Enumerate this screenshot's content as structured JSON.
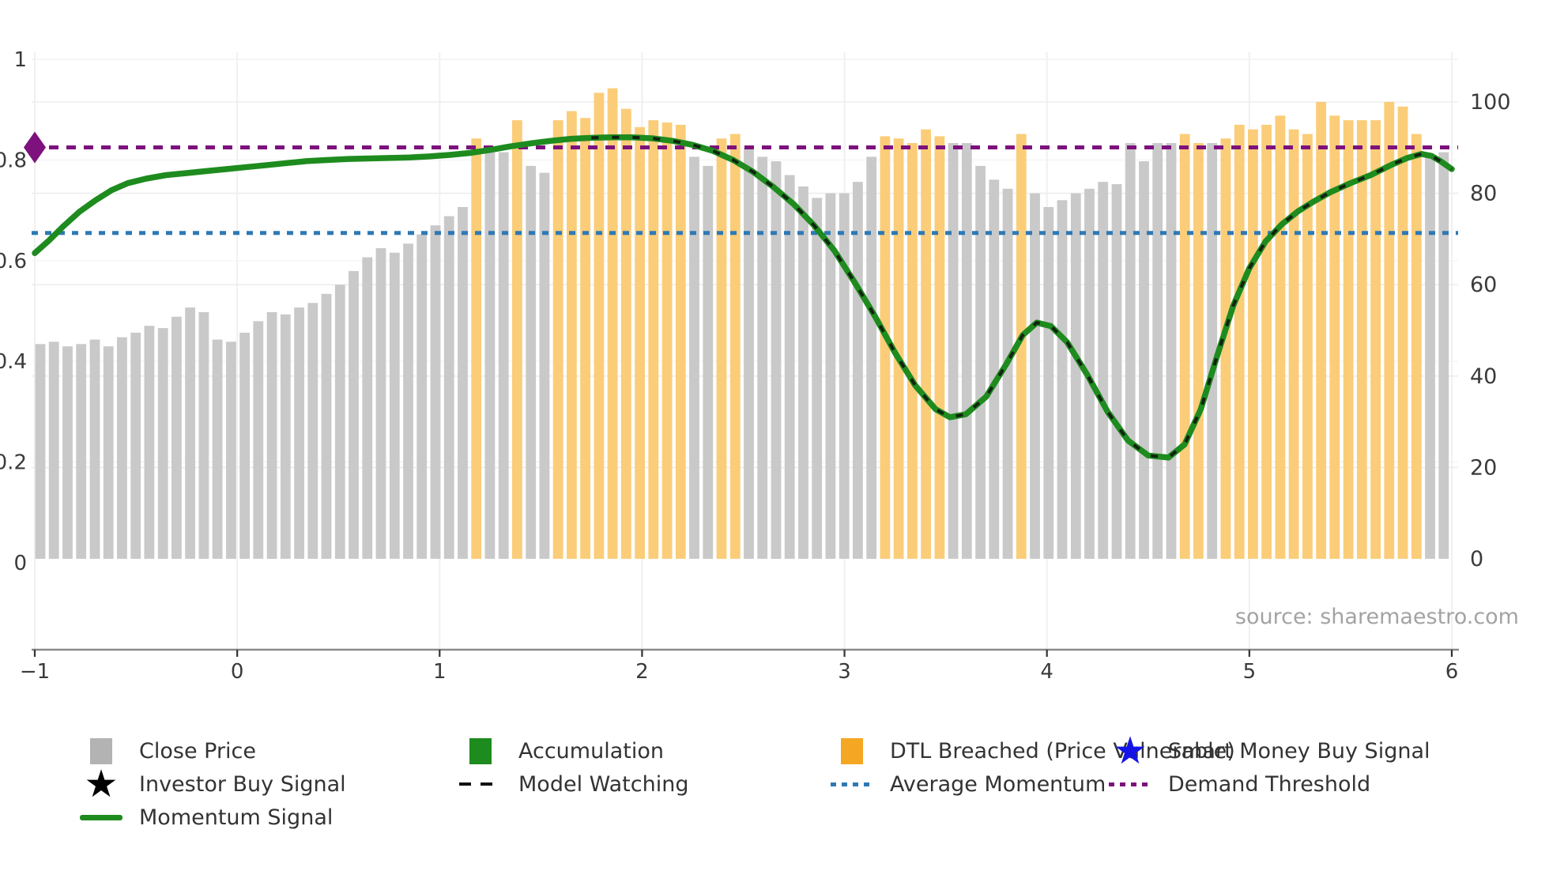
{
  "source_text": "source: sharemaestro.com",
  "colors": {
    "close_bar": "#c9c9c9",
    "close_legend": "#b3b3b3",
    "dtl_bar": "#fbcd79",
    "dtl_legend": "#f5a623",
    "momentum": "#1e8b1e",
    "model_watching": "#111111",
    "average_momentum": "#2e79b5",
    "demand_threshold": "#7d117d",
    "smart_money_star": "#1414e6",
    "investor_star": "#000000",
    "tick_text": "#3a3a3a",
    "axis_line": "#8a8a8a",
    "grid": "#ededed"
  },
  "legend": {
    "items": [
      {
        "label": "Close Price",
        "marker": "gray-swatch"
      },
      {
        "label": "Accumulation",
        "marker": "green-swatch"
      },
      {
        "label": "DTL Breached (Price Vulnerable)",
        "marker": "orange-swatch"
      },
      {
        "label": "Smart Money Buy Signal",
        "marker": "blue-star"
      },
      {
        "label": "Investor Buy Signal",
        "marker": "black-star"
      },
      {
        "label": "Model Watching",
        "marker": "black-dashed-line"
      },
      {
        "label": "Average Momentum",
        "marker": "blue-dotted-line"
      },
      {
        "label": "Demand Threshold",
        "marker": "purple-dotted-line"
      },
      {
        "label": "Momentum Signal",
        "marker": "green-line"
      }
    ]
  },
  "chart_data": {
    "type": "combo-bar-line",
    "title": "",
    "xlabel": "",
    "ylabel": "",
    "legend_position": "bottom",
    "grid": true,
    "x_axis": {
      "ticks": [
        -1,
        0,
        1,
        2,
        3,
        4,
        5,
        6
      ],
      "labels": [
        "−1",
        "0",
        "1",
        "2",
        "3",
        "4",
        "5",
        "6"
      ],
      "range": [
        -1.05,
        6.05
      ]
    },
    "left_axis": {
      "ticks": [
        0,
        0.2,
        0.4,
        0.6,
        0.8,
        1
      ],
      "labels": [
        "0",
        "0.2",
        "0.4",
        "0.6",
        "0.8",
        "1"
      ],
      "range": [
        -0.17,
        1.01
      ]
    },
    "right_axis": {
      "ticks": [
        0,
        20,
        40,
        60,
        80,
        100
      ],
      "labels": [
        "0",
        "20",
        "40",
        "60",
        "80",
        "100"
      ],
      "range": [
        -20,
        111
      ]
    },
    "bars": {
      "name": "Close Price",
      "axis": "right",
      "x_start": -0.99,
      "x_end": 5.97,
      "values": [
        47,
        47.5,
        46.5,
        47,
        48,
        46.5,
        48.5,
        49.5,
        51,
        50.5,
        53,
        55,
        54,
        48,
        47.5,
        49.5,
        52,
        54,
        53.5,
        55,
        56,
        58,
        60,
        63,
        66,
        68,
        67,
        69,
        71,
        73,
        75,
        77,
        92,
        89,
        89,
        96,
        86,
        84.5,
        96,
        98,
        96.5,
        102,
        103,
        98.5,
        94.5,
        96,
        95.5,
        95,
        88,
        86,
        92,
        93,
        90,
        88,
        87,
        84,
        81.5,
        79,
        80,
        80,
        82.5,
        88,
        92.5,
        92,
        91,
        94,
        92.5,
        91,
        91,
        86,
        83,
        81,
        93,
        80,
        77,
        78.5,
        80,
        81,
        82.5,
        82,
        91,
        87,
        91,
        91,
        93,
        91,
        91,
        92,
        95,
        94,
        95,
        97,
        94,
        93,
        100,
        97,
        96,
        96,
        96,
        100,
        99,
        93,
        88,
        89
      ],
      "breached": [
        0,
        0,
        0,
        0,
        0,
        0,
        0,
        0,
        0,
        0,
        0,
        0,
        0,
        0,
        0,
        0,
        0,
        0,
        0,
        0,
        0,
        0,
        0,
        0,
        0,
        0,
        0,
        0,
        0,
        0,
        0,
        0,
        1,
        0,
        0,
        1,
        0,
        0,
        1,
        1,
        1,
        1,
        1,
        1,
        1,
        1,
        1,
        1,
        0,
        0,
        1,
        1,
        0,
        0,
        0,
        0,
        0,
        0,
        0,
        0,
        0,
        0,
        1,
        1,
        1,
        1,
        1,
        0,
        0,
        0,
        0,
        0,
        1,
        0,
        0,
        0,
        0,
        0,
        0,
        0,
        0,
        0,
        0,
        0,
        1,
        1,
        0,
        1,
        1,
        1,
        1,
        1,
        1,
        1,
        1,
        1,
        1,
        1,
        1,
        1,
        1,
        1,
        0,
        0
      ]
    },
    "momentum_signal": {
      "name": "Momentum Signal",
      "axis": "left",
      "points": [
        [
          -1.0,
          0.615
        ],
        [
          -0.93,
          0.64
        ],
        [
          -0.86,
          0.668
        ],
        [
          -0.78,
          0.697
        ],
        [
          -0.7,
          0.72
        ],
        [
          -0.62,
          0.74
        ],
        [
          -0.54,
          0.754
        ],
        [
          -0.45,
          0.763
        ],
        [
          -0.35,
          0.77
        ],
        [
          -0.25,
          0.774
        ],
        [
          -0.15,
          0.778
        ],
        [
          -0.05,
          0.782
        ],
        [
          0.05,
          0.786
        ],
        [
          0.15,
          0.79
        ],
        [
          0.25,
          0.794
        ],
        [
          0.35,
          0.798
        ],
        [
          0.45,
          0.8
        ],
        [
          0.55,
          0.802
        ],
        [
          0.65,
          0.803
        ],
        [
          0.75,
          0.804
        ],
        [
          0.85,
          0.805
        ],
        [
          0.95,
          0.807
        ],
        [
          1.05,
          0.81
        ],
        [
          1.15,
          0.814
        ],
        [
          1.25,
          0.82
        ],
        [
          1.35,
          0.827
        ],
        [
          1.45,
          0.833
        ],
        [
          1.55,
          0.838
        ],
        [
          1.65,
          0.842
        ],
        [
          1.75,
          0.844
        ],
        [
          1.85,
          0.845
        ],
        [
          1.95,
          0.845
        ],
        [
          2.05,
          0.843
        ],
        [
          2.15,
          0.838
        ],
        [
          2.25,
          0.83
        ],
        [
          2.35,
          0.818
        ],
        [
          2.45,
          0.8
        ],
        [
          2.55,
          0.776
        ],
        [
          2.65,
          0.746
        ],
        [
          2.75,
          0.712
        ],
        [
          2.85,
          0.67
        ],
        [
          2.95,
          0.62
        ],
        [
          3.05,
          0.557
        ],
        [
          3.15,
          0.49
        ],
        [
          3.25,
          0.417
        ],
        [
          3.35,
          0.352
        ],
        [
          3.45,
          0.305
        ],
        [
          3.52,
          0.289
        ],
        [
          3.6,
          0.295
        ],
        [
          3.7,
          0.33
        ],
        [
          3.8,
          0.395
        ],
        [
          3.88,
          0.452
        ],
        [
          3.95,
          0.477
        ],
        [
          4.02,
          0.47
        ],
        [
          4.1,
          0.438
        ],
        [
          4.2,
          0.373
        ],
        [
          4.3,
          0.3
        ],
        [
          4.4,
          0.243
        ],
        [
          4.5,
          0.213
        ],
        [
          4.6,
          0.209
        ],
        [
          4.68,
          0.235
        ],
        [
          4.76,
          0.305
        ],
        [
          4.84,
          0.41
        ],
        [
          4.92,
          0.51
        ],
        [
          5.0,
          0.585
        ],
        [
          5.08,
          0.638
        ],
        [
          5.16,
          0.672
        ],
        [
          5.24,
          0.698
        ],
        [
          5.32,
          0.718
        ],
        [
          5.4,
          0.736
        ],
        [
          5.5,
          0.754
        ],
        [
          5.6,
          0.77
        ],
        [
          5.7,
          0.79
        ],
        [
          5.78,
          0.804
        ],
        [
          5.85,
          0.812
        ],
        [
          5.9,
          0.808
        ],
        [
          5.95,
          0.796
        ],
        [
          6.0,
          0.782
        ]
      ]
    },
    "model_watching": {
      "name": "Model Watching",
      "overlay_on": "momentum_signal",
      "from_x": 1.7,
      "to_x": 6.0
    },
    "average_momentum": {
      "name": "Average Momentum",
      "axis": "left",
      "value": 0.655
    },
    "demand_threshold": {
      "name": "Demand Threshold",
      "axis": "left",
      "value": 0.825,
      "marker": "diamond",
      "marker_x": -1
    }
  }
}
